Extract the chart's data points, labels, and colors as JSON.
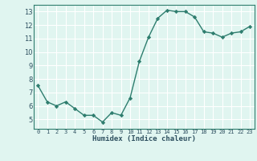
{
  "x": [
    0,
    1,
    2,
    3,
    4,
    5,
    6,
    7,
    8,
    9,
    10,
    11,
    12,
    13,
    14,
    15,
    16,
    17,
    18,
    19,
    20,
    21,
    22,
    23
  ],
  "y": [
    7.5,
    6.3,
    6.0,
    6.3,
    5.8,
    5.3,
    5.3,
    4.8,
    5.5,
    5.3,
    6.6,
    9.3,
    11.1,
    12.5,
    13.1,
    13.0,
    13.0,
    12.6,
    11.5,
    11.4,
    11.1,
    11.4,
    11.5,
    11.9
  ],
  "xlabel": "Humidex (Indice chaleur)",
  "xlim": [
    -0.5,
    23.5
  ],
  "ylim": [
    4.3,
    13.5
  ],
  "yticks": [
    5,
    6,
    7,
    8,
    9,
    10,
    11,
    12,
    13
  ],
  "xtick_labels": [
    "0",
    "1",
    "2",
    "3",
    "4",
    "5",
    "6",
    "7",
    "8",
    "9",
    "10",
    "11",
    "12",
    "13",
    "14",
    "15",
    "16",
    "17",
    "18",
    "19",
    "20",
    "21",
    "22",
    "23"
  ],
  "line_color": "#2e7d6e",
  "marker_color": "#2e7d6e",
  "bg_color": "#e0f5f0",
  "grid_color": "#ffffff",
  "label_color": "#2e5060",
  "spine_color": "#2e7d6e"
}
